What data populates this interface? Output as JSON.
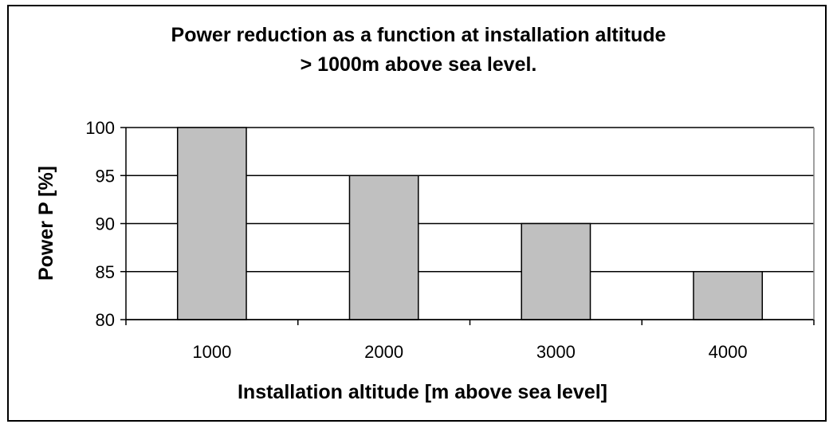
{
  "chart_data": {
    "type": "bar",
    "title_lines": [
      "Power reduction as a function at installation altitude",
      "> 1000m above sea level."
    ],
    "xlabel": "Installation altitude [m above sea level]",
    "ylabel": "Power P [%]",
    "categories": [
      "1000",
      "2000",
      "3000",
      "4000"
    ],
    "values": [
      100,
      95,
      90,
      85
    ],
    "ylim": [
      80,
      100
    ],
    "yticks": [
      "100",
      "95",
      "90",
      "85",
      "80"
    ],
    "ytick_values": [
      100,
      95,
      90,
      85,
      80
    ],
    "grid": true,
    "legend": "none",
    "bar_color": "#c0c0c0",
    "edge_color": "#000000"
  }
}
